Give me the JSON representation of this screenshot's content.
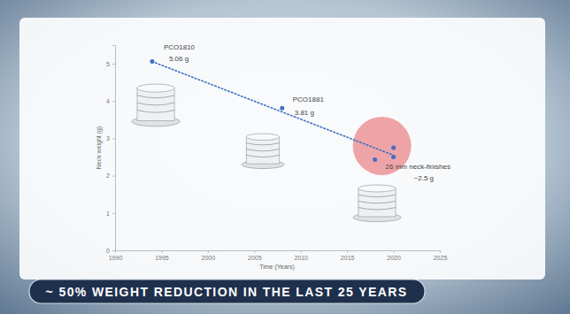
{
  "chart_data": {
    "type": "scatter",
    "x_label": "Time (Years)",
    "y_label": "Neck weight (g)",
    "series": [
      {
        "type": "scatter",
        "color": "#3f6fc6",
        "marker": "circle",
        "x": [
          1994,
          2008,
          2018,
          2020,
          2020
        ],
        "values": [
          5.06,
          3.81,
          2.43,
          2.75,
          2.5
        ]
      },
      {
        "type": "line",
        "color": "#3f6fc6",
        "line_style": "dotted",
        "x": [
          1994,
          2020
        ],
        "values": [
          5.06,
          2.55
        ]
      }
    ],
    "annotations": [
      [
        "PCO1810",
        "5.06 g"
      ],
      [
        "PCO1881",
        "3.81 g"
      ],
      [
        "26 mm neck-finishes",
        "~2.5 g"
      ]
    ],
    "xlim": [
      1990,
      2025
    ],
    "xticks": [
      1990,
      1995,
      2000,
      2005,
      2010,
      2015,
      2020,
      2025
    ],
    "ylim": [
      0,
      5.5
    ],
    "yticks": [
      0,
      1,
      2,
      3,
      4,
      5
    ],
    "grid": false
  },
  "banner": "~ 50% WEIGHT REDUCTION IN THE LAST 25 YEARS"
}
